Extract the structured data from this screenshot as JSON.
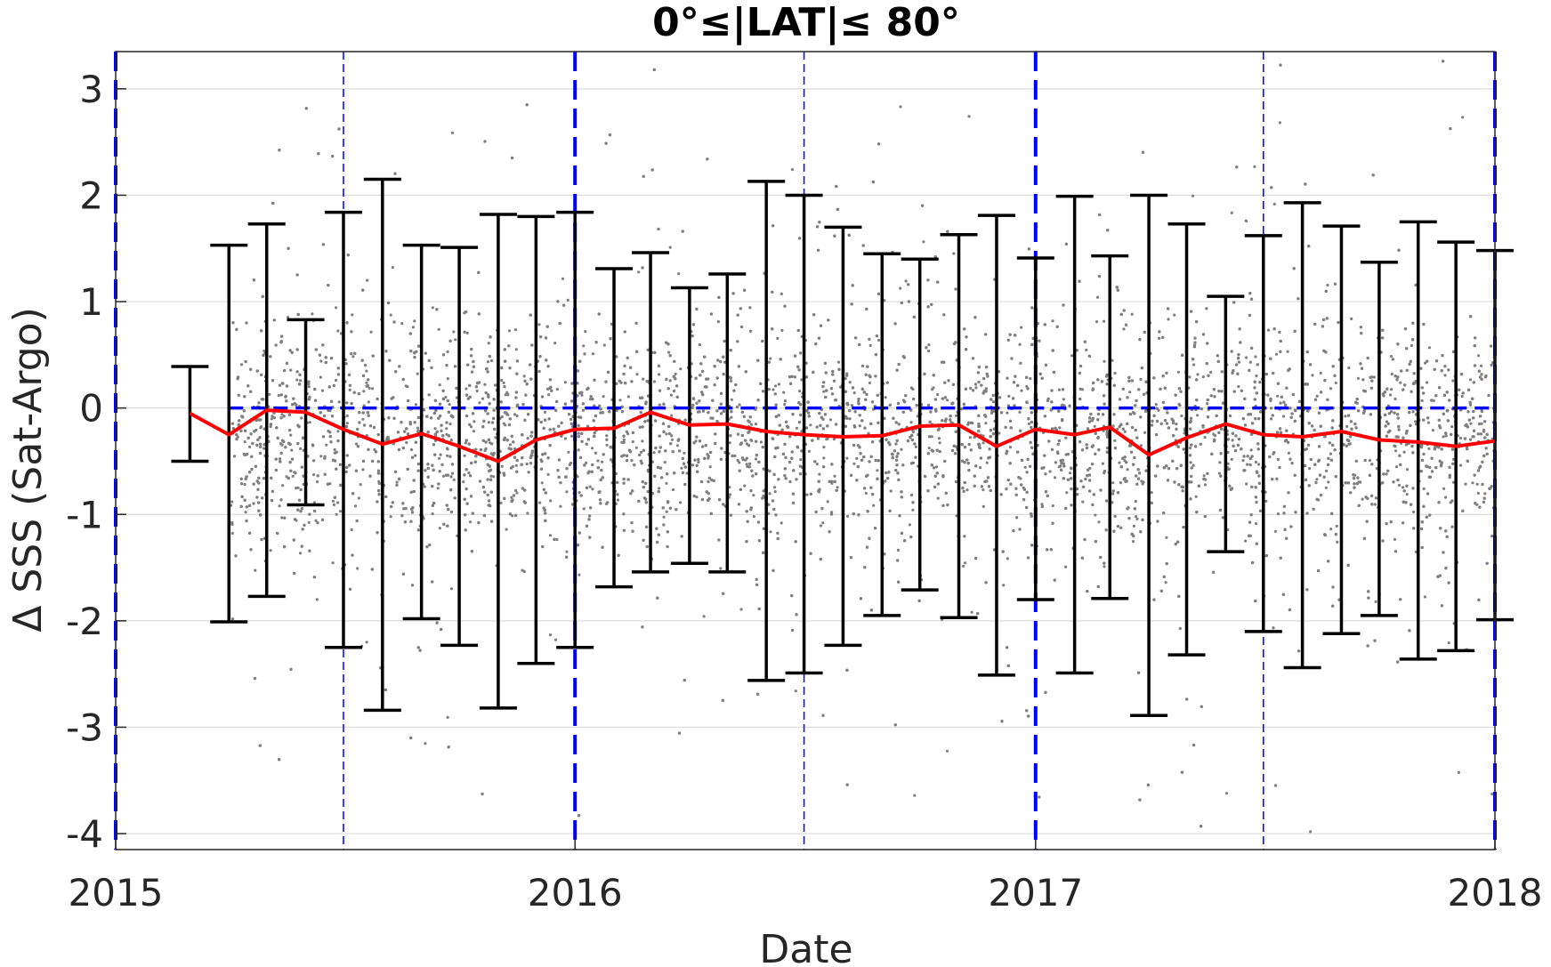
{
  "chart_data": {
    "type": "scatter",
    "title": "0°≤|LAT|≤ 80°",
    "xlabel": "Date",
    "ylabel": "Δ SSS (Sat-Argo)",
    "xlim": [
      "2015-01-01",
      "2018-01-01"
    ],
    "ylim": [
      -4.15,
      3.35
    ],
    "x_ticks": [
      "2015",
      "2016",
      "2017",
      "2018"
    ],
    "y_ticks": [
      3,
      2,
      1,
      0,
      -1,
      -2,
      -3,
      -4
    ],
    "y_tick_labels": [
      "3",
      "2",
      "1",
      "0",
      "-1",
      "-2",
      "-3",
      "-4"
    ],
    "grid": true,
    "colors": {
      "points": "#7f7f7f",
      "mean_line": "#ff0000",
      "error_bars": "#000000",
      "reference_lines": "#0000ff",
      "grid": "#dcdcdc"
    },
    "reference_lines": {
      "zero_line": 0,
      "year_boundaries": [
        "2015-01-01",
        "2016-01-01",
        "2017-01-01",
        "2018-01-01"
      ],
      "mid_year": [
        "2015-07-01",
        "2016-07-01",
        "2017-07-01"
      ]
    },
    "scatter_cloud": {
      "x_range": [
        "2015-04-01",
        "2018-01-01"
      ],
      "center": -0.25,
      "core_spread": 0.5,
      "extent": [
        -4.0,
        3.3
      ]
    },
    "monthly_stats": {
      "dates": [
        "2015-03-01",
        "2015-04-01",
        "2015-05-01",
        "2015-06-01",
        "2015-07-01",
        "2015-08-01",
        "2015-09-01",
        "2015-10-01",
        "2015-11-01",
        "2015-12-01",
        "2016-01-01",
        "2016-02-01",
        "2016-03-01",
        "2016-04-01",
        "2016-05-01",
        "2016-06-01",
        "2016-07-01",
        "2016-08-01",
        "2016-09-01",
        "2016-10-01",
        "2016-11-01",
        "2016-12-01",
        "2017-01-01",
        "2017-02-01",
        "2017-03-01",
        "2017-04-01",
        "2017-05-01",
        "2017-06-01",
        "2017-07-01",
        "2017-08-01",
        "2017-09-01",
        "2017-10-01",
        "2017-11-01",
        "2017-12-01",
        "2018-01-01"
      ],
      "mean": [
        -0.05,
        -0.25,
        -0.02,
        -0.04,
        -0.2,
        -0.34,
        -0.24,
        -0.36,
        -0.5,
        -0.3,
        -0.2,
        -0.19,
        -0.04,
        -0.16,
        -0.15,
        -0.22,
        -0.25,
        -0.27,
        -0.26,
        -0.17,
        -0.16,
        -0.36,
        -0.2,
        -0.25,
        -0.18,
        -0.44,
        -0.28,
        -0.15,
        -0.25,
        -0.27,
        -0.22,
        -0.3,
        -0.32,
        -0.36,
        -0.31
      ],
      "upper": [
        0.39,
        1.53,
        1.73,
        0.83,
        1.84,
        2.15,
        1.53,
        1.51,
        1.82,
        1.8,
        1.84,
        1.31,
        1.46,
        1.13,
        1.26,
        2.13,
        2.0,
        1.7,
        1.45,
        1.4,
        1.63,
        1.81,
        1.41,
        1.99,
        1.43,
        2.0,
        1.73,
        1.05,
        1.62,
        1.93,
        1.71,
        1.37,
        1.75,
        1.56,
        1.48
      ],
      "lower": [
        -0.5,
        -2.01,
        -1.77,
        -0.91,
        -2.25,
        -2.84,
        -1.98,
        -2.23,
        -2.82,
        -2.4,
        -2.25,
        -1.68,
        -1.54,
        -1.46,
        -1.54,
        -2.56,
        -2.49,
        -2.23,
        -1.95,
        -1.71,
        -1.97,
        -2.51,
        -1.8,
        -2.49,
        -1.79,
        -2.89,
        -2.32,
        -1.35,
        -2.1,
        -2.44,
        -2.12,
        -1.95,
        -2.36,
        -2.28,
        -1.99
      ]
    }
  }
}
